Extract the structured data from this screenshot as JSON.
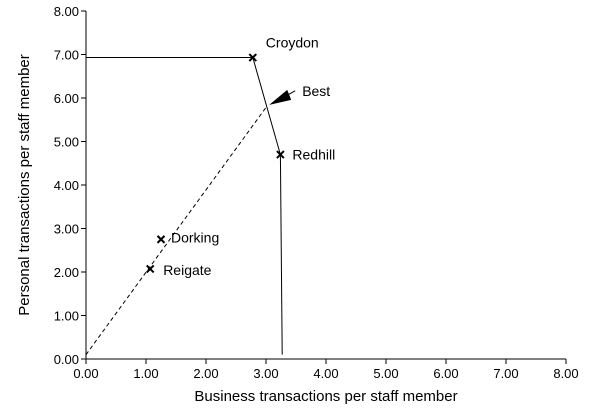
{
  "chart_data": {
    "type": "scatter",
    "title": "",
    "xlabel": "Business transactions per staff member",
    "ylabel": "Personal transactions per staff member",
    "xlim": [
      0,
      8
    ],
    "ylim": [
      0,
      8
    ],
    "x_ticks": [
      "0.00",
      "1.00",
      "2.00",
      "3.00",
      "4.00",
      "5.00",
      "6.00",
      "7.00",
      "8.00"
    ],
    "y_ticks": [
      "0.00",
      "1.00",
      "2.00",
      "3.00",
      "4.00",
      "5.00",
      "6.00",
      "7.00",
      "8.00"
    ],
    "grid": false,
    "points": [
      {
        "label": "Croydon",
        "x": 2.78,
        "y": 6.93
      },
      {
        "label": "Redhill",
        "x": 3.24,
        "y": 4.7
      },
      {
        "label": "Dorking",
        "x": 1.25,
        "y": 2.75
      },
      {
        "label": "Reigate",
        "x": 1.07,
        "y": 2.07
      }
    ],
    "best_annotation": {
      "label": "Best",
      "x": 3.02,
      "y": 5.82
    },
    "frontier": [
      {
        "x": 0,
        "y": 6.93
      },
      {
        "x": 2.78,
        "y": 6.93
      },
      {
        "x": 3.24,
        "y": 4.7
      },
      {
        "x": 3.27,
        "y": 0.1
      }
    ],
    "ray": [
      {
        "x": 0,
        "y": 0.1
      },
      {
        "x": 3.02,
        "y": 5.82
      }
    ]
  }
}
